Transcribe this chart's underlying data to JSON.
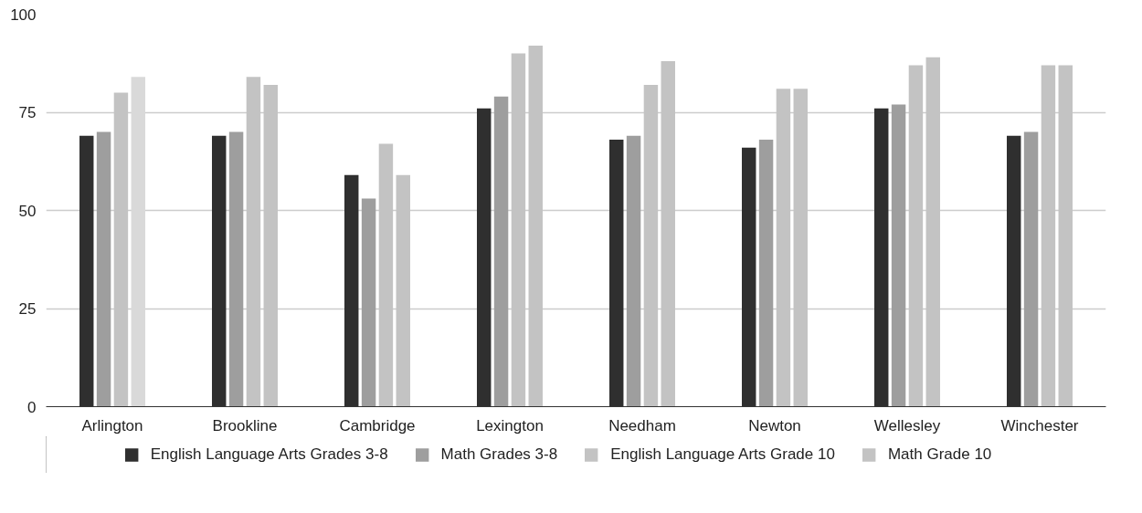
{
  "chart_data": {
    "type": "bar",
    "categories": [
      "Arlington",
      "Brookline",
      "Cambridge",
      "Lexington",
      "Needham",
      "Newton",
      "Wellesley",
      "Winchester"
    ],
    "series": [
      {
        "name": "English Language Arts Grades 3-8",
        "color": "#2f2f2f",
        "values": [
          69,
          69,
          59,
          76,
          68,
          66,
          76,
          69
        ]
      },
      {
        "name": "Math Grades 3-8",
        "color": "#9e9e9e",
        "values": [
          70,
          70,
          53,
          79,
          69,
          68,
          77,
          70
        ]
      },
      {
        "name": "English Language Arts Grade 10",
        "color": "#c3c3c3",
        "values": [
          80,
          84,
          67,
          90,
          82,
          81,
          87,
          87
        ]
      },
      {
        "name": "Math Grade 10",
        "color": "#c3c3c3",
        "colors": [
          "#d9d9d9",
          "#c3c3c3",
          "#c3c3c3",
          "#c3c3c3",
          "#c3c3c3",
          "#c3c3c3",
          "#c3c3c3",
          "#c3c3c3"
        ],
        "values": [
          84,
          82,
          59,
          92,
          88,
          81,
          89,
          87
        ]
      }
    ],
    "ylim": [
      0,
      100
    ],
    "yticks": [
      0,
      25,
      50,
      75,
      100
    ],
    "grid": "y",
    "legend": "bottom"
  }
}
